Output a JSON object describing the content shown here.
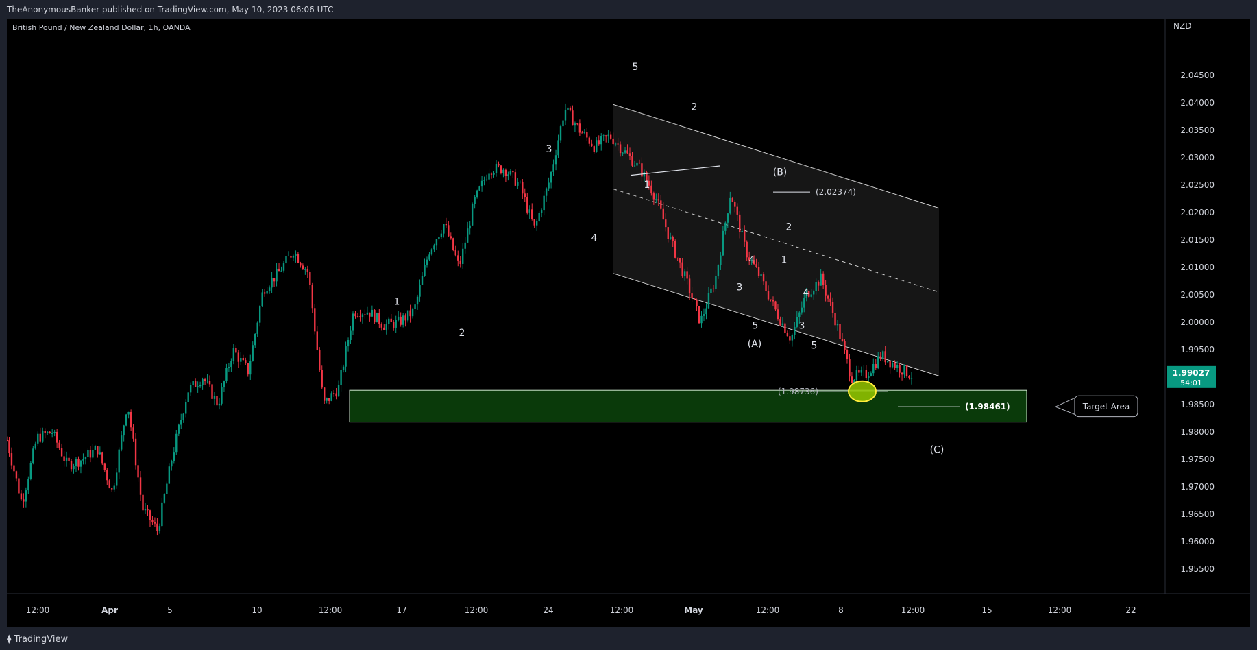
{
  "header": {
    "text": "TheAnonymousBanker published on TradingView.com, May 10, 2023 06:06 UTC"
  },
  "footer": {
    "brand": "TradingView"
  },
  "chart_data": {
    "type": "candlestick",
    "title": "British Pound / New Zealand Dollar, 1h, OANDA",
    "currency": "NZD",
    "ylim": [
      1.9515,
      2.0535
    ],
    "y_ticks": [
      "2.04500",
      "2.04000",
      "2.03500",
      "2.03000",
      "2.02500",
      "2.02000",
      "2.01500",
      "2.01000",
      "2.00500",
      "2.00000",
      "1.99500",
      "1.99000",
      "1.98500",
      "1.98000",
      "1.97500",
      "1.97000",
      "1.96500",
      "1.96000",
      "1.95500"
    ],
    "x_ticks": [
      "12:00",
      "Apr",
      "5",
      "10",
      "12:00",
      "17",
      "12:00",
      "24",
      "12:00",
      "May",
      "12:00",
      "8",
      "12:00",
      "15",
      "12:00",
      "22"
    ],
    "last_price": {
      "value": "1.99027",
      "countdown": "54:01",
      "color": "#089981"
    },
    "colors": {
      "up": "#089981",
      "down": "#f23645",
      "zone": "#0a3a0a",
      "zone_border": "#cfe8cf"
    },
    "price_path": [
      [
        0.0,
        1.9785
      ],
      [
        0.025,
        1.967
      ],
      [
        0.05,
        1.979
      ],
      [
        0.075,
        1.98
      ],
      [
        0.1,
        1.974
      ],
      [
        0.125,
        1.975
      ],
      [
        0.15,
        1.977
      ],
      [
        0.175,
        1.969
      ],
      [
        0.2,
        1.9855
      ],
      [
        0.225,
        1.966
      ],
      [
        0.25,
        1.962
      ],
      [
        0.275,
        1.976
      ],
      [
        0.3,
        1.9875
      ],
      [
        0.325,
        1.99
      ],
      [
        0.35,
        1.985
      ],
      [
        0.375,
        1.995
      ],
      [
        0.4,
        1.991
      ],
      [
        0.425,
        2.006
      ],
      [
        0.45,
        2.009
      ],
      [
        0.475,
        2.013
      ],
      [
        0.5,
        2.009
      ],
      [
        0.525,
        1.985
      ],
      [
        0.55,
        1.988
      ],
      [
        0.575,
        2.002
      ],
      [
        0.6,
        2.002
      ],
      [
        0.625,
        1.9995
      ],
      [
        0.65,
        2.0
      ],
      [
        0.675,
        2.002
      ],
      [
        0.7,
        2.013
      ],
      [
        0.725,
        2.018
      ],
      [
        0.75,
        2.01
      ],
      [
        0.775,
        2.022
      ],
      [
        0.8,
        2.028
      ],
      [
        0.825,
        2.028
      ],
      [
        0.85,
        2.025
      ],
      [
        0.875,
        2.017
      ],
      [
        0.9,
        2.026
      ],
      [
        0.925,
        2.039
      ],
      [
        0.95,
        2.035
      ],
      [
        0.975,
        2.032
      ],
      [
        1.0,
        2.034
      ],
      [
        1.025,
        2.031
      ],
      [
        1.05,
        2.028
      ],
      [
        1.075,
        2.023
      ],
      [
        1.1,
        2.015
      ],
      [
        1.125,
        2.008
      ],
      [
        1.15,
        2.0
      ],
      [
        1.175,
        2.008
      ],
      [
        1.2,
        2.0237
      ],
      [
        1.225,
        2.013
      ],
      [
        1.25,
        2.008
      ],
      [
        1.275,
        2.002
      ],
      [
        1.3,
        1.997
      ],
      [
        1.325,
        2.005
      ],
      [
        1.35,
        2.008
      ],
      [
        1.375,
        2.0
      ],
      [
        1.4,
        1.99
      ],
      [
        1.425,
        1.9905
      ],
      [
        1.45,
        1.994
      ],
      [
        1.475,
        1.992
      ],
      [
        1.5,
        1.9903
      ]
    ],
    "wave_labels": [
      "5",
      "2",
      "3",
      "1",
      "4",
      "1",
      "2",
      "(B)",
      "2",
      "4",
      "1",
      "3",
      "4",
      "5",
      "3",
      "(A)",
      "5",
      "(C)"
    ],
    "annotations": {
      "b_level": "(2.02374)",
      "low_level": "(1.98736)",
      "target_level": "(1.98461)",
      "target_callout": "Target Area"
    }
  }
}
